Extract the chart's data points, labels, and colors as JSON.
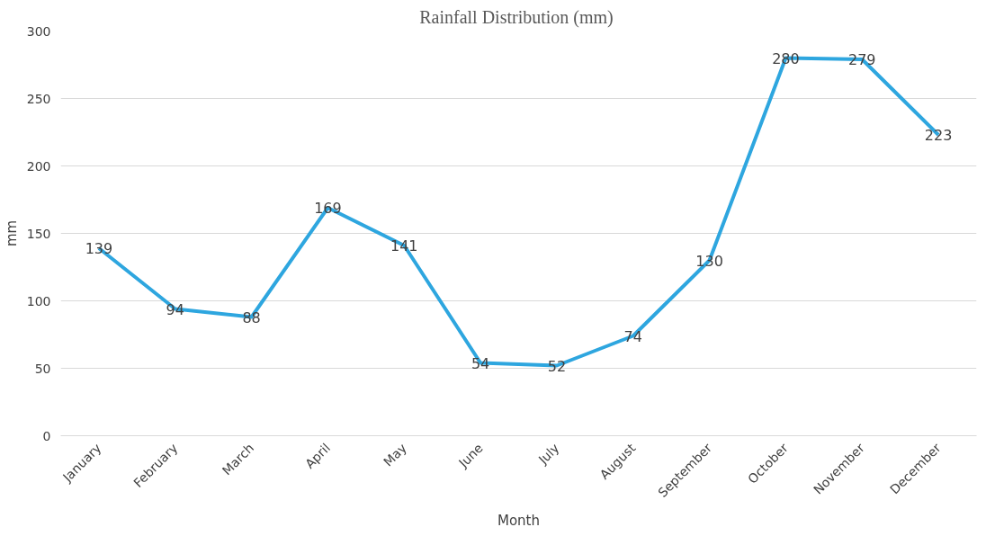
{
  "chart_data": {
    "type": "line",
    "title": "Rainfall  Distribution (mm)",
    "xlabel": "Month",
    "ylabel": "mm",
    "categories": [
      "January",
      "February",
      "March",
      "April",
      "May",
      "June",
      "July",
      "August",
      "September",
      "October",
      "November",
      "December"
    ],
    "series": [
      {
        "color": "#2ea6df",
        "values": [
          139,
          94,
          88,
          169,
          141,
          54,
          52,
          74,
          130,
          280,
          279,
          223
        ]
      }
    ],
    "ylim": [
      0,
      300
    ],
    "yticks": [
      0,
      50,
      100,
      150,
      200,
      250,
      300
    ],
    "grid": "y",
    "data_labels": true,
    "line_style": "solid"
  }
}
